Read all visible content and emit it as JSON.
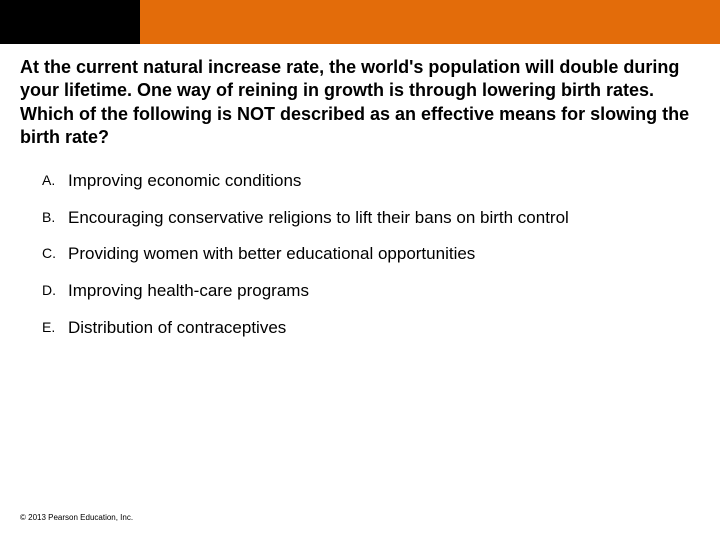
{
  "colors": {
    "header_black": "#000000",
    "header_orange": "#e36c0a",
    "background": "#ffffff",
    "text": "#000000"
  },
  "question": "At the current natural increase rate, the world's population will double during your lifetime. One way of reining in growth is through lowering birth rates. Which of the following is NOT described as an effective means for slowing the birth rate?",
  "options": [
    {
      "letter": "A.",
      "text": "Improving economic conditions"
    },
    {
      "letter": "B.",
      "text": "Encouraging conservative religions to lift their bans on birth control"
    },
    {
      "letter": "C.",
      "text": "Providing women with better educational opportunities"
    },
    {
      "letter": "D.",
      "text": "Improving health-care programs"
    },
    {
      "letter": "E.",
      "text": "Distribution of contraceptives"
    }
  ],
  "copyright": "© 2013 Pearson Education, Inc."
}
